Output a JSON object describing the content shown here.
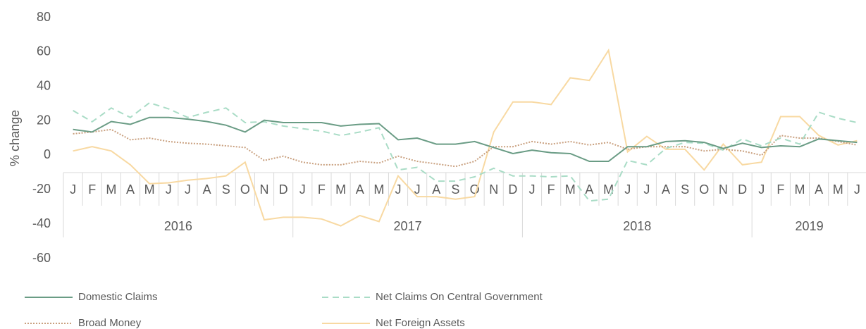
{
  "chart_data": {
    "type": "line",
    "y_label": "% change",
    "categories": [
      "J",
      "F",
      "M",
      "A",
      "M",
      "J",
      "J",
      "A",
      "S",
      "O",
      "N",
      "D",
      "J",
      "F",
      "M",
      "A",
      "M",
      "J",
      "J",
      "A",
      "S",
      "O",
      "N",
      "D",
      "J",
      "F",
      "M",
      "A",
      "M",
      "J",
      "J",
      "A",
      "S",
      "O",
      "N",
      "D",
      "J",
      "F",
      "M",
      "A",
      "M",
      "J"
    ],
    "years": [
      "2016",
      "2016",
      "2016",
      "2016",
      "2016",
      "2016",
      "2016",
      "2016",
      "2016",
      "2016",
      "2016",
      "2016",
      "2017",
      "2017",
      "2017",
      "2017",
      "2017",
      "2017",
      "2017",
      "2017",
      "2017",
      "2017",
      "2017",
      "2017",
      "2018",
      "2018",
      "2018",
      "2018",
      "2018",
      "2018",
      "2018",
      "2018",
      "2018",
      "2018",
      "2018",
      "2018",
      "2019",
      "2019",
      "2019",
      "2019",
      "2019",
      "2019"
    ],
    "ylim": [
      -60,
      80
    ],
    "yticks": [
      -60,
      -40,
      -20,
      0,
      20,
      40,
      60,
      80
    ],
    "grid": false,
    "legend": "bottom",
    "series": [
      {
        "name": "Domestic Claims",
        "color": "#6a9c85",
        "line_style": "solid",
        "values": [
          15,
          13.5,
          19.6,
          18,
          22,
          22,
          21,
          19.6,
          17.5,
          13.5,
          20.4,
          19,
          19,
          19,
          17,
          18,
          18.4,
          9,
          10,
          6.5,
          6.5,
          8,
          4.5,
          1,
          3,
          1.5,
          1,
          -3.5,
          -3.5,
          5,
          5,
          8,
          8.5,
          7.5,
          4,
          7,
          4.5,
          5.5,
          5,
          9.5,
          8.5,
          7.5
        ]
      },
      {
        "name": "Net Claims On Central Government",
        "color": "#a9dcc6",
        "line_style": "dashed",
        "values": [
          26,
          19.5,
          27.5,
          22,
          30.5,
          27,
          22,
          25,
          27.5,
          19,
          19.5,
          17,
          15.5,
          14,
          11.5,
          13.5,
          16,
          -8.5,
          -7,
          -15,
          -15,
          -12.5,
          -7.5,
          -12,
          -12,
          -12.5,
          -12,
          -26.5,
          -25.5,
          -3,
          -5.5,
          4,
          7.5,
          7,
          3,
          9.5,
          5.5,
          10,
          6.5,
          25,
          21.5,
          19
        ]
      },
      {
        "name": "Broad Money",
        "color": "#c9a07f",
        "line_style": "dotted",
        "values": [
          12.5,
          13.5,
          15,
          9,
          10,
          8,
          7,
          6.5,
          5.5,
          4.5,
          -3,
          -0.5,
          -4,
          -5.5,
          -5.5,
          -3.5,
          -4.5,
          -0.5,
          -3.5,
          -5,
          -6.5,
          -3.5,
          5,
          5,
          8,
          6.5,
          8,
          6,
          7.5,
          3.5,
          5,
          5,
          5,
          2.5,
          3.5,
          2.5,
          0,
          11.5,
          10,
          10,
          8,
          6
        ]
      },
      {
        "name": "Net Foreign Assets",
        "color": "#f8d9a2",
        "line_style": "solid",
        "values": [
          2.5,
          5,
          2.5,
          -5.5,
          -16.5,
          -16,
          -14.5,
          -13.5,
          -12,
          -4,
          -37.5,
          -36,
          -36,
          -37,
          -41,
          -35,
          -38.5,
          -12,
          -24,
          -24,
          -25.5,
          -24,
          13.5,
          31,
          31,
          29.5,
          45,
          43.5,
          61,
          2,
          11,
          3.5,
          3.5,
          -8.5,
          6.5,
          -5.5,
          -4,
          22.5,
          22.5,
          11.5,
          6,
          8.5
        ]
      }
    ]
  }
}
